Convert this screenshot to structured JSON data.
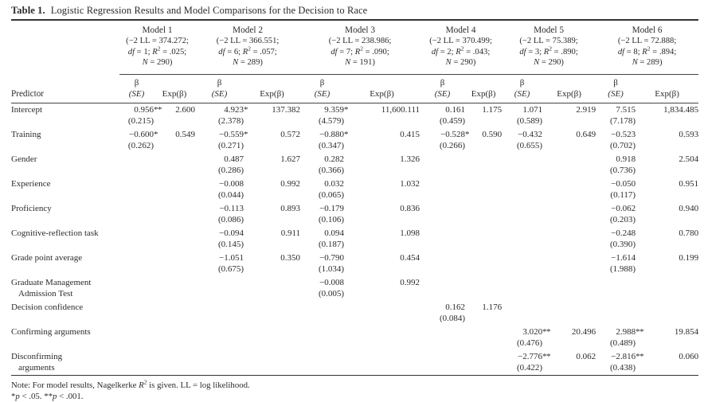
{
  "title": {
    "bold": "Table 1.",
    "rest": "Logistic Regression Results and Model Comparisons for the Decision to Race"
  },
  "header": {
    "predictor_label": "Predictor",
    "beta_label": "β",
    "se_label": "(SE)",
    "exp_label": "Exp(β)",
    "stat_fragments": {
      "ll_pre": "(−2 LL = ",
      "eq": " = ",
      "semi": ";",
      "sp": " ",
      "close": ")",
      "df": "df",
      "r": "R",
      "two": "2",
      "n": "N"
    },
    "models": [
      {
        "name": "Model 1",
        "ll": "374.272",
        "df": "1",
        "r2": ".025",
        "n": "290"
      },
      {
        "name": "Model 2",
        "ll": "366.551",
        "df": "6",
        "r2": ".057",
        "n": "289"
      },
      {
        "name": "Model 3",
        "ll": "238.986",
        "df": "7",
        "r2": ".090",
        "n": "191"
      },
      {
        "name": "Model 4",
        "ll": "370.499",
        "df": "2",
        "r2": ".043",
        "n": "290"
      },
      {
        "name": "Model 5",
        "ll": "75.389",
        "df": "3",
        "r2": ".890",
        "n": "290"
      },
      {
        "name": "Model 6",
        "ll": "72.888",
        "df": "8",
        "r2": ".894",
        "n": "289"
      }
    ]
  },
  "rows": [
    {
      "predictor": [
        "Intercept"
      ],
      "cells": [
        {
          "b": "0.956",
          "s": "**",
          "se": "(0.215)",
          "e": "2.600"
        },
        {
          "b": "4.923",
          "s": "*",
          "se": "(2.378)",
          "e": "137.382"
        },
        {
          "b": "9.359",
          "s": "*",
          "se": "(4.579)",
          "e": "11,600.111"
        },
        {
          "b": "0.161",
          "se": "(0.459)",
          "e": "1.175"
        },
        {
          "b": "1.071",
          "se": "(0.589)",
          "e": "2.919"
        },
        {
          "b": "7.515",
          "se": "(7.178)",
          "e": "1,834.485"
        }
      ]
    },
    {
      "predictor": [
        "Training"
      ],
      "cells": [
        {
          "b": "−0.600",
          "s": "*",
          "se": "(0.262)",
          "e": "0.549"
        },
        {
          "b": "−0.559",
          "s": "*",
          "se": "(0.271)",
          "e": "0.572"
        },
        {
          "b": "−0.880",
          "s": "*",
          "se": "(0.347)",
          "e": "0.415"
        },
        {
          "b": "−0.528",
          "s": "*",
          "se": "(0.266)",
          "e": "0.590"
        },
        {
          "b": "−0.432",
          "se": "(0.655)",
          "e": "0.649"
        },
        {
          "b": "−0.523",
          "se": "(0.702)",
          "e": "0.593"
        }
      ]
    },
    {
      "predictor": [
        "Gender"
      ],
      "cells": [
        null,
        {
          "b": "0.487",
          "se": "(0.286)",
          "e": "1.627"
        },
        {
          "b": "0.282",
          "se": "(0.366)",
          "e": "1.326"
        },
        null,
        null,
        {
          "b": "0.918",
          "se": "(0.736)",
          "e": "2.504"
        }
      ]
    },
    {
      "predictor": [
        "Experience"
      ],
      "cells": [
        null,
        {
          "b": "−0.008",
          "se": "(0.044)",
          "e": "0.992"
        },
        {
          "b": "0.032",
          "se": "(0.065)",
          "e": "1.032"
        },
        null,
        null,
        {
          "b": "−0.050",
          "se": "(0.117)",
          "e": "0.951"
        }
      ]
    },
    {
      "predictor": [
        "Proficiency"
      ],
      "cells": [
        null,
        {
          "b": "−0.113",
          "se": "(0.086)",
          "e": "0.893"
        },
        {
          "b": "−0.179",
          "se": "(0.106)",
          "e": "0.836"
        },
        null,
        null,
        {
          "b": "−0.062",
          "se": "(0.203)",
          "e": "0.940"
        }
      ]
    },
    {
      "predictor": [
        "Cognitive-reflection task"
      ],
      "cells": [
        null,
        {
          "b": "−0.094",
          "se": "(0.145)",
          "e": "0.911"
        },
        {
          "b": "0.094",
          "se": "(0.187)",
          "e": "1.098"
        },
        null,
        null,
        {
          "b": "−0.248",
          "se": "(0.390)",
          "e": "0.780"
        }
      ]
    },
    {
      "predictor": [
        "Grade point average"
      ],
      "cells": [
        null,
        {
          "b": "−1.051",
          "se": "(0.675)",
          "e": "0.350"
        },
        {
          "b": "−0.790",
          "se": "(1.034)",
          "e": "0.454"
        },
        null,
        null,
        {
          "b": "−1.614",
          "se": "(1.988)",
          "e": "0.199"
        }
      ]
    },
    {
      "predictor": [
        "Graduate Management",
        "Admission Test"
      ],
      "cells": [
        null,
        null,
        {
          "b": "−0.008",
          "se": "(0.005)",
          "e": "0.992"
        },
        null,
        null,
        null
      ]
    },
    {
      "predictor": [
        "Decision confidence"
      ],
      "cells": [
        null,
        null,
        null,
        {
          "b": "0.162",
          "se": "(0.084)",
          "e": "1.176"
        },
        null,
        null
      ]
    },
    {
      "predictor": [
        "Confirming arguments"
      ],
      "cells": [
        null,
        null,
        null,
        null,
        {
          "b": "3.020",
          "s": "**",
          "se": "(0.476)",
          "e": "20.496"
        },
        {
          "b": "2.988",
          "s": "**",
          "se": "(0.489)",
          "e": "19.854"
        }
      ]
    },
    {
      "predictor": [
        "Disconfirming",
        "arguments"
      ],
      "cells": [
        null,
        null,
        null,
        null,
        {
          "b": "−2.776",
          "s": "**",
          "se": "(0.422)",
          "e": "0.062"
        },
        {
          "b": "−2.816",
          "s": "**",
          "se": "(0.438)",
          "e": "0.060"
        }
      ]
    }
  ],
  "note": {
    "pre": "Note: For model results, Nagelkerke ",
    "r": "R",
    "sup": "2",
    "post": " is given. LL = log likelihood.",
    "star1": "*",
    "p1": "p",
    "sig1": " < .05. ",
    "star2": "**",
    "p2": "p",
    "sig2": " < .001."
  }
}
